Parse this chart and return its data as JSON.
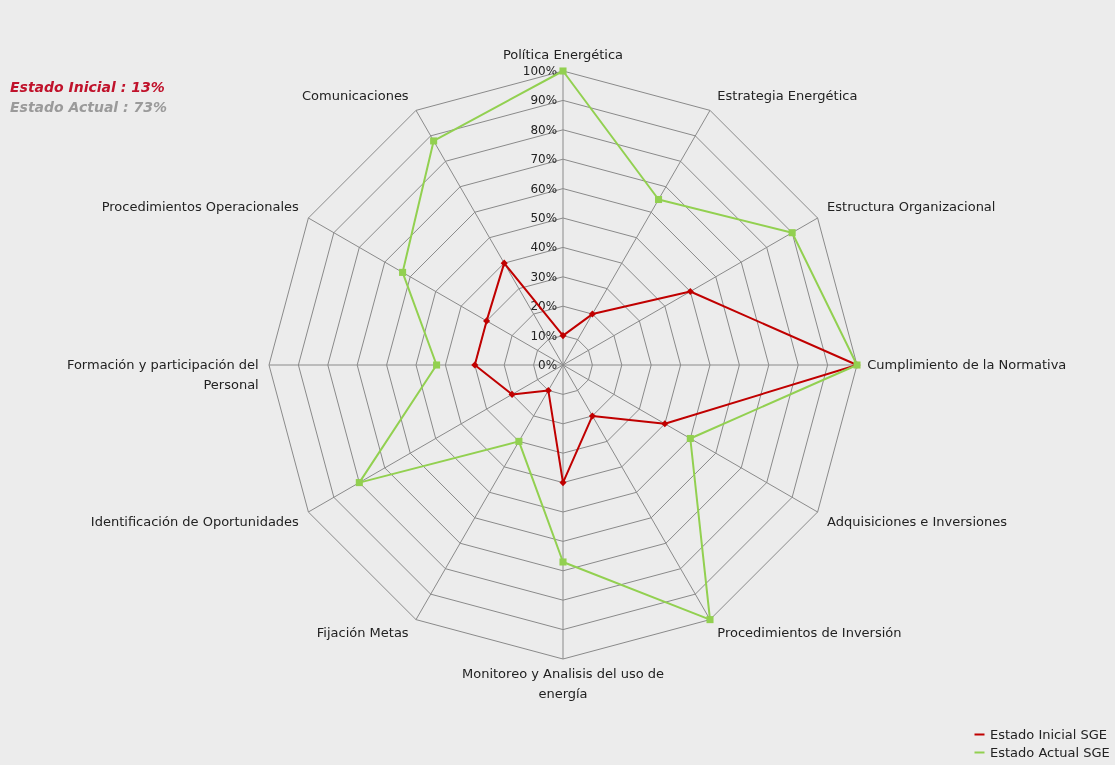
{
  "chart_data": {
    "type": "radar",
    "categories": [
      "Política Energética",
      "Estrategia Energética",
      "Estructura Organizacional",
      "Cumplimiento de la Normativa",
      "Adquisiciones e Inversiones",
      "Procedimientos de Inversión",
      "Monitoreo y Analisis del uso de energía",
      "Fijación Metas",
      "Identificación de Oportunidades",
      "Formación y participación del Personal",
      "Procedimientos Operacionales",
      "Comunicaciones"
    ],
    "series": [
      {
        "name": "Estado Inicial SGE",
        "color": "#c00000",
        "marker": "diamond",
        "values": [
          10,
          20,
          50,
          100,
          40,
          20,
          40,
          10,
          20,
          30,
          30,
          40
        ]
      },
      {
        "name": "Estado Actual SGE",
        "color": "#92d050",
        "marker": "square",
        "values": [
          100,
          65,
          90,
          100,
          50,
          100,
          67,
          30,
          80,
          43,
          63,
          88
        ]
      }
    ],
    "ylim": [
      0,
      100
    ],
    "yticks": [
      {
        "value": 0,
        "label": "0%"
      },
      {
        "value": 10,
        "label": "10%"
      },
      {
        "value": 20,
        "label": "20%"
      },
      {
        "value": 30,
        "label": "30%"
      },
      {
        "value": 40,
        "label": "40%"
      },
      {
        "value": 50,
        "label": "50%"
      },
      {
        "value": 60,
        "label": "60%"
      },
      {
        "value": 70,
        "label": "70%"
      },
      {
        "value": 80,
        "label": "80%"
      },
      {
        "value": 90,
        "label": "90%"
      },
      {
        "value": 100,
        "label": "100%"
      }
    ],
    "grid": true,
    "legend": "bottom right",
    "annotations": [
      "Estado Inicial : 13%",
      "Estado Actual : 73%"
    ]
  }
}
